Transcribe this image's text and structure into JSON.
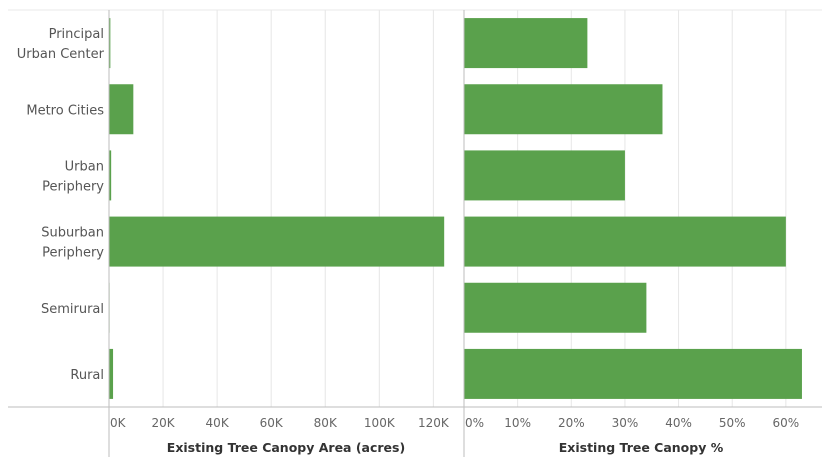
{
  "colors": {
    "bar": "#5aa14c",
    "gridline": "#e6e6e6",
    "axis": "#bdbdbd"
  },
  "chart_data": [
    {
      "type": "bar",
      "orientation": "horizontal",
      "categories": [
        [
          "Principal",
          "Urban Center"
        ],
        [
          "Metro Cities"
        ],
        [
          "Urban",
          "Periphery"
        ],
        [
          "Suburban",
          "Periphery"
        ],
        [
          "Semirural"
        ],
        [
          "Rural"
        ]
      ],
      "values": [
        500,
        9000,
        800,
        124000,
        100,
        1500
      ],
      "xlabel": "Existing Tree Canopy Area (acres)",
      "xlim": [
        0,
        128000
      ],
      "ticks": [
        0,
        20000,
        40000,
        60000,
        80000,
        100000,
        120000
      ],
      "tick_labels": [
        "0K",
        "20K",
        "40K",
        "60K",
        "80K",
        "100K",
        "120K"
      ],
      "grid": true
    },
    {
      "type": "bar",
      "orientation": "horizontal",
      "values": [
        23,
        37,
        30,
        60,
        34,
        63
      ],
      "xlabel": "Existing Tree Canopy %",
      "xlim": [
        0,
        64.5
      ],
      "ticks": [
        0,
        10,
        20,
        30,
        40,
        50,
        60
      ],
      "tick_labels": [
        "0%",
        "10%",
        "20%",
        "30%",
        "40%",
        "50%",
        "60%"
      ],
      "grid": true
    }
  ]
}
